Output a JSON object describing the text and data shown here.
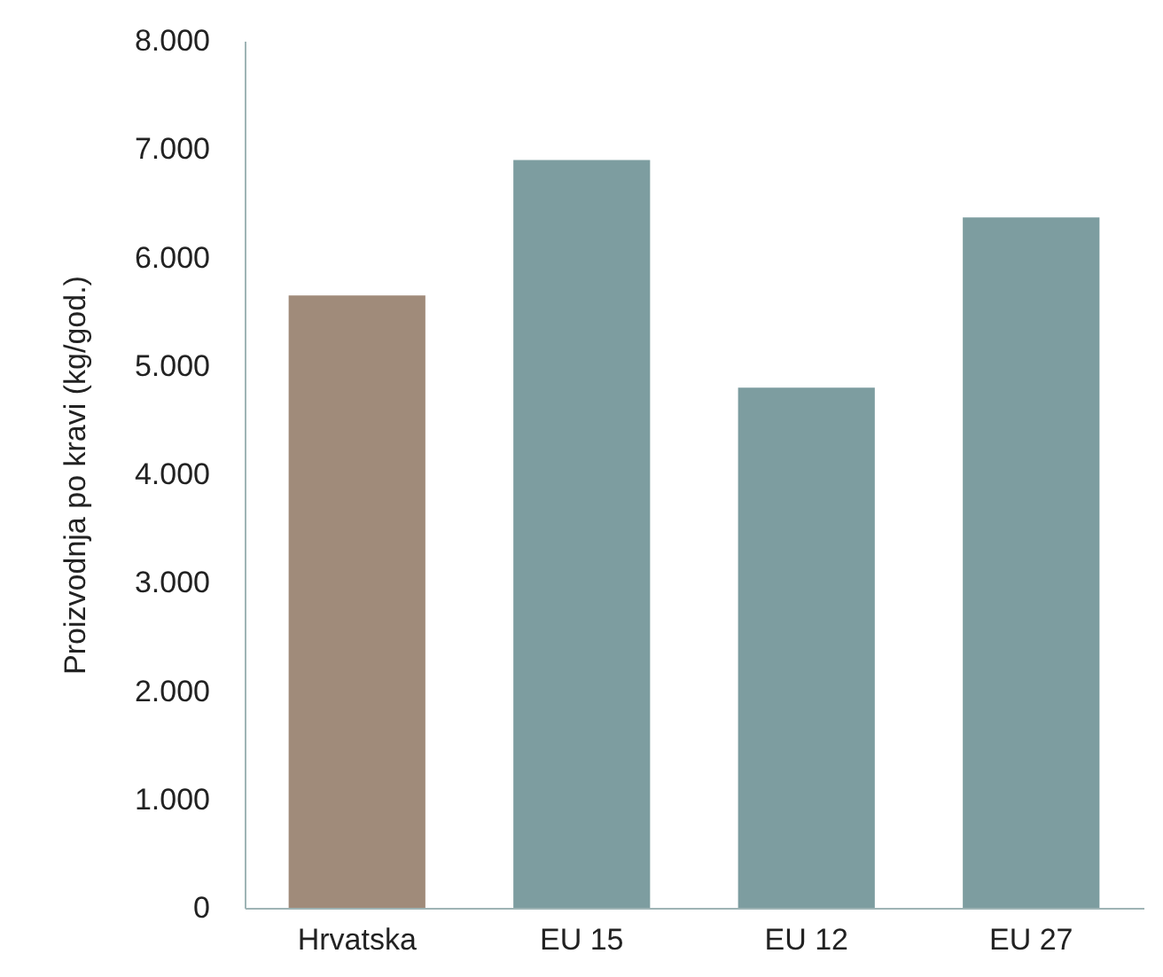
{
  "chart_data": {
    "type": "bar",
    "ylabel": "Proizvodnja po kravi (kg/god.)",
    "categories": [
      "Hrvatska",
      "EU 15",
      "EU 12",
      "EU 27"
    ],
    "values": [
      5650,
      6900,
      4800,
      6370
    ],
    "colors": [
      "#a08b7a",
      "#7d9da0",
      "#7d9da0",
      "#7d9da0"
    ],
    "ylim": [
      0,
      8000
    ],
    "yticks": [
      {
        "value": 0,
        "label": "0"
      },
      {
        "value": 1000,
        "label": "1.000"
      },
      {
        "value": 2000,
        "label": "2.000"
      },
      {
        "value": 3000,
        "label": "3.000"
      },
      {
        "value": 4000,
        "label": "4.000"
      },
      {
        "value": 5000,
        "label": "5.000"
      },
      {
        "value": 6000,
        "label": "6.000"
      },
      {
        "value": 7000,
        "label": "7.000"
      },
      {
        "value": 8000,
        "label": "8.000"
      }
    ],
    "grid": false
  }
}
